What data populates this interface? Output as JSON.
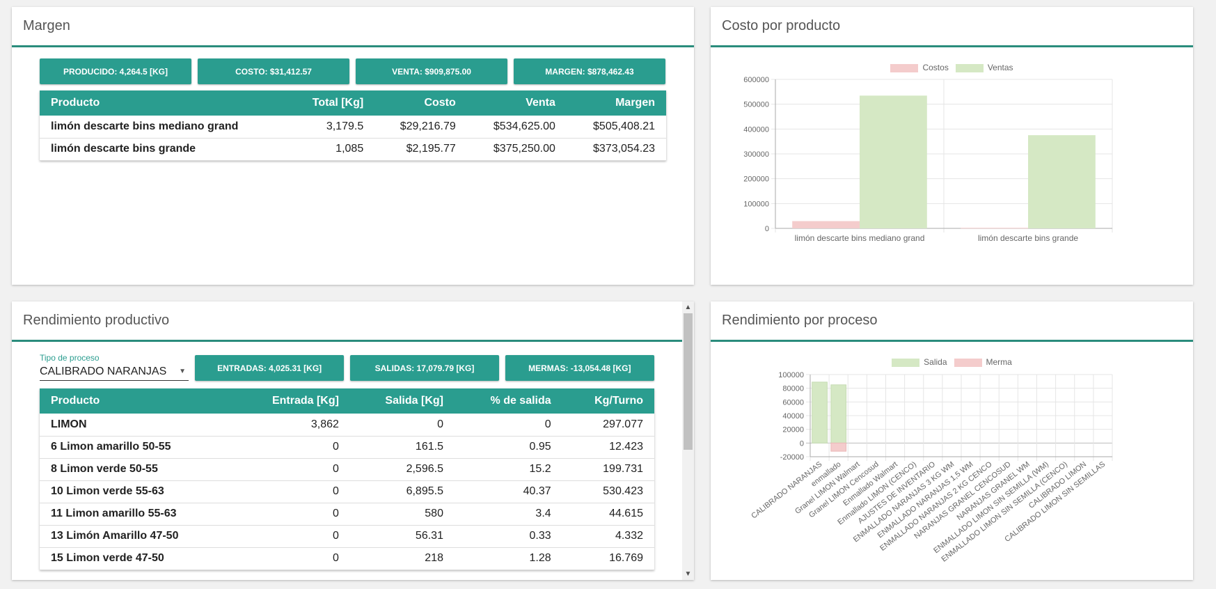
{
  "margen": {
    "title": "Margen",
    "chips": [
      "PRODUCIDO: 4,264.5 [KG]",
      "COSTO: $31,412.57",
      "VENTA: $909,875.00",
      "MARGEN: $878,462.43"
    ],
    "headers": [
      "Producto",
      "Total [Kg]",
      "Costo",
      "Venta",
      "Margen"
    ],
    "rows": [
      [
        "limón descarte bins mediano grand",
        "3,179.5",
        "$29,216.79",
        "$534,625.00",
        "$505,408.21"
      ],
      [
        "limón descarte bins grande",
        "1,085",
        "$2,195.77",
        "$375,250.00",
        "$373,054.23"
      ]
    ]
  },
  "costo": {
    "title": "Costo por producto",
    "legend": [
      "Costos",
      "Ventas"
    ],
    "colors": {
      "costos": "#f4cccc",
      "ventas": "#d5e8c4"
    }
  },
  "rendimiento": {
    "title": "Rendimiento productivo",
    "select_label": "Tipo de proceso",
    "select_value": "CALIBRADO NARANJAS",
    "chips": [
      "ENTRADAS: 4,025.31 [KG]",
      "SALIDAS: 17,079.79 [KG]",
      "MERMAS: -13,054.48 [KG]"
    ],
    "headers": [
      "Producto",
      "Entrada [Kg]",
      "Salida [Kg]",
      "% de salida",
      "Kg/Turno"
    ],
    "rows": [
      [
        "LIMON",
        "3,862",
        "0",
        "0",
        "297.077"
      ],
      [
        "6 Limon amarillo 50-55",
        "0",
        "161.5",
        "0.95",
        "12.423"
      ],
      [
        "8 Limon verde 50-55",
        "0",
        "2,596.5",
        "15.2",
        "199.731"
      ],
      [
        "10 Limon verde 55-63",
        "0",
        "6,895.5",
        "40.37",
        "530.423"
      ],
      [
        "11 Limon amarillo 55-63",
        "0",
        "580",
        "3.4",
        "44.615"
      ],
      [
        "13 Limón Amarillo 47-50",
        "0",
        "56.31",
        "0.33",
        "4.332"
      ],
      [
        "15 Limon verde 47-50",
        "0",
        "218",
        "1.28",
        "16.769"
      ]
    ]
  },
  "proceso": {
    "title": "Rendimiento por proceso",
    "legend": [
      "Salida",
      "Merma"
    ],
    "colors": {
      "salida": "#d5e8c4",
      "merma": "#f4cccc"
    }
  },
  "chart_data": [
    {
      "type": "bar",
      "title": "",
      "categories": [
        "limón descarte bins mediano grand",
        "limón descarte bins grande"
      ],
      "series": [
        {
          "name": "Costos",
          "values": [
            29216.79,
            2195.77
          ]
        },
        {
          "name": "Ventas",
          "values": [
            534625,
            375250
          ]
        }
      ],
      "ylim": [
        0,
        600000
      ],
      "yticks": [
        "600000",
        "500000",
        "400000",
        "300000",
        "200000",
        "100000",
        "0"
      ],
      "grid": true,
      "legend": "top-center"
    },
    {
      "type": "bar",
      "title": "",
      "categories": [
        "CALIBRADO NARANJAS",
        "enmallado",
        "Granel LIMON Walmart",
        "Granel LIMON  Cencosud",
        "Enmallado Walmart",
        "Enmallado LIMON (CENCO)",
        "AJUSTES DE INVENTARIO",
        "ENMALLADO NARANJAS 3 KG WM",
        "ENMALLADO NARANJAS 1,5 WM",
        "ENMALLADO NARANJAS 2 KG CENCO",
        "NARANJAS GRANEL CENCOSUD",
        "NARANJAS GRANEL WM",
        "ENMALLADO LIMON SIN SEMILLA (WM)",
        "ENMALLADO LIMON SIN SEMILLA (CENCO)",
        "CALIBRADO LIMON",
        "CALIBRADO LIMON SIN SEMILLAS"
      ],
      "series": [
        {
          "name": "Salida",
          "values": [
            89000,
            85000,
            0,
            0,
            0,
            0,
            0,
            0,
            0,
            0,
            0,
            0,
            0,
            0,
            0,
            0
          ]
        },
        {
          "name": "Merma",
          "values": [
            0,
            -12000,
            0,
            0,
            0,
            0,
            0,
            0,
            0,
            0,
            0,
            0,
            0,
            0,
            0,
            0
          ]
        }
      ],
      "ylim": [
        -20000,
        100000
      ],
      "yticks": [
        "100000",
        "80000",
        "60000",
        "40000",
        "20000",
        "0",
        "-20000"
      ],
      "grid": true,
      "legend": "top-center"
    }
  ]
}
